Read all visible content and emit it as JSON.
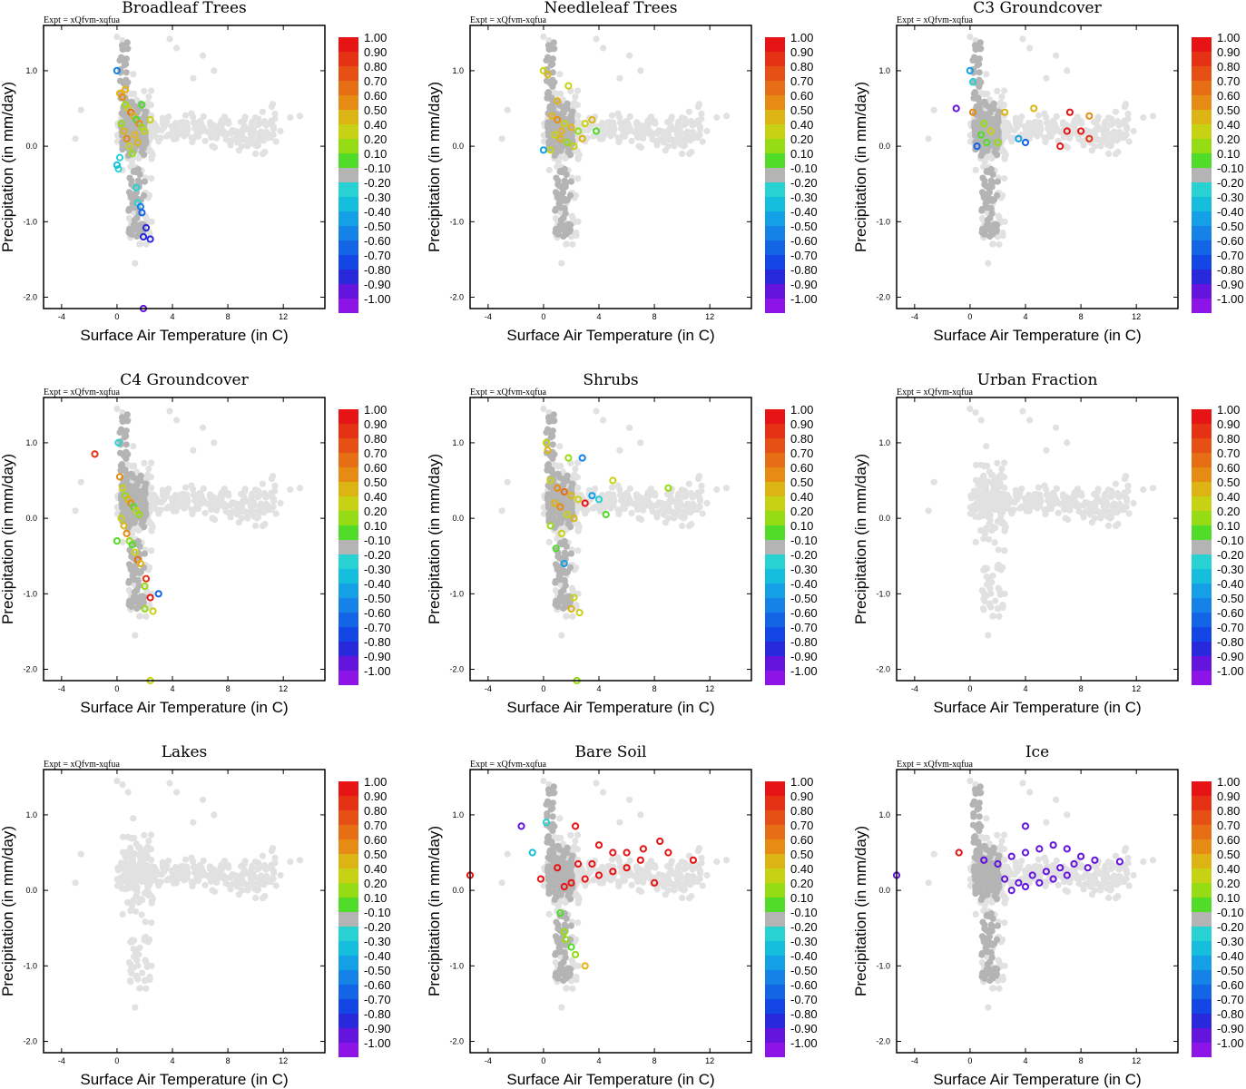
{
  "figure": {
    "expt_label": "Expt = xQfvm-xqfua"
  },
  "axes": {
    "xlabel": "Surface Air Temperature (in C)",
    "ylabel": "Precipitation (in mm/day)",
    "xlim": [
      -5.3,
      15
    ],
    "ylim": [
      -2.15,
      1.6
    ],
    "xticks": [
      -4,
      0,
      4,
      8,
      12
    ],
    "xtick_labels": [
      "-4",
      "0",
      "4",
      "8",
      "12"
    ],
    "yticks": [
      -2,
      -1,
      0,
      1
    ],
    "ytick_labels": [
      "-2.0",
      "-1.0",
      "0.0",
      "1.0"
    ]
  },
  "colorbar": {
    "labels": [
      "1.00",
      "0.90",
      "0.80",
      "0.70",
      "0.60",
      "0.50",
      "0.40",
      "0.20",
      "0.10",
      "-0.10",
      "-0.20",
      "-0.30",
      "-0.40",
      "-0.50",
      "-0.60",
      "-0.70",
      "-0.80",
      "-0.90",
      "-1.00"
    ],
    "colors": [
      "#e61414",
      "#e63214",
      "#e65014",
      "#e66e14",
      "#e68c14",
      "#dcb414",
      "#c8d214",
      "#96dc14",
      "#50dc28",
      "#b4b4b4",
      "#28d2d2",
      "#14bedc",
      "#14a0e6",
      "#1482e6",
      "#1464e6",
      "#1446e6",
      "#2828dc",
      "#6414dc",
      "#8c14e6"
    ]
  },
  "colors": {
    "background_points": "#e1e1e1",
    "neutral_points": "#b4b4b4"
  },
  "chart_data": [
    {
      "type": "scatter",
      "title": "Broadleaf Trees",
      "series": [
        {
          "name": "cluster",
          "points": [
            [
              0.2,
              0.7,
              "#e6b414"
            ],
            [
              0.4,
              0.65,
              "#e68c14"
            ],
            [
              0.6,
              0.55,
              "#96dc14"
            ],
            [
              0.8,
              0.5,
              "#c8d214"
            ],
            [
              1.0,
              0.45,
              "#e66e14"
            ],
            [
              1.2,
              0.4,
              "#dcb414"
            ],
            [
              1.4,
              0.35,
              "#50dc28"
            ],
            [
              1.6,
              0.3,
              "#e68c14"
            ],
            [
              1.8,
              0.25,
              "#96dc14"
            ],
            [
              2.0,
              0.2,
              "#c8d214"
            ],
            [
              0.3,
              0.3,
              "#96dc14"
            ],
            [
              0.5,
              0.2,
              "#dcb414"
            ],
            [
              0.7,
              0.1,
              "#e68c14"
            ],
            [
              0.9,
              0.0,
              "#c8d214"
            ],
            [
              1.1,
              -0.1,
              "#96dc14"
            ],
            [
              1.3,
              0.15,
              "#e6b414"
            ],
            [
              1.5,
              0.05,
              "#dcb414"
            ],
            [
              0.2,
              -0.15,
              "#28d2d2"
            ],
            [
              0.1,
              -0.3,
              "#28d2d2"
            ],
            [
              1.8,
              0.55,
              "#50dc28"
            ],
            [
              2.4,
              0.35,
              "#c8d214"
            ],
            [
              0.6,
              0.75,
              "#e6b414"
            ]
          ]
        },
        {
          "name": "tail",
          "points": [
            [
              0.0,
              -0.25,
              "#14bedc"
            ],
            [
              1.4,
              -0.55,
              "#28d2d2"
            ],
            [
              1.5,
              -0.75,
              "#28d2d2"
            ],
            [
              1.7,
              -0.8,
              "#1482e6"
            ],
            [
              1.8,
              -0.88,
              "#1464e6"
            ],
            [
              2.1,
              -1.08,
              "#2828dc"
            ],
            [
              1.9,
              -1.2,
              "#2828dc"
            ],
            [
              2.4,
              -1.23,
              "#2828dc"
            ],
            [
              1.9,
              -2.15,
              "#6414dc"
            ],
            [
              0.0,
              1.0,
              "#1482e6"
            ]
          ]
        }
      ]
    },
    {
      "type": "scatter",
      "title": "Needleleaf Trees",
      "series": [
        {
          "name": "cluster",
          "points": [
            [
              0.0,
              1.0,
              "#c8d214"
            ],
            [
              0.3,
              0.95,
              "#dcb414"
            ],
            [
              1.8,
              0.8,
              "#c8d214"
            ],
            [
              0.6,
              0.4,
              "#e6b414"
            ],
            [
              1.0,
              0.35,
              "#e68c14"
            ],
            [
              1.5,
              0.3,
              "#c8d214"
            ],
            [
              2.0,
              0.25,
              "#e6b414"
            ],
            [
              2.5,
              0.2,
              "#96dc14"
            ],
            [
              3.0,
              0.3,
              "#c8d214"
            ],
            [
              3.5,
              0.35,
              "#dcb414"
            ],
            [
              0.8,
              0.15,
              "#c8d214"
            ],
            [
              1.2,
              0.1,
              "#dcb414"
            ],
            [
              1.7,
              0.05,
              "#96dc14"
            ],
            [
              2.2,
              0.0,
              "#c8d214"
            ],
            [
              0.5,
              -0.05,
              "#c8d214"
            ],
            [
              1.3,
              0.2,
              "#e6b414"
            ],
            [
              2.8,
              0.1,
              "#dcb414"
            ],
            [
              0.0,
              -0.05,
              "#14a0e6"
            ],
            [
              3.8,
              0.2,
              "#50dc28"
            ],
            [
              1.0,
              0.6,
              "#e6b414"
            ]
          ]
        }
      ]
    },
    {
      "type": "scatter",
      "title": "C3 Groundcover",
      "series": [
        {
          "name": "cluster",
          "points": [
            [
              0.0,
              1.0,
              "#14a0e6"
            ],
            [
              0.2,
              0.85,
              "#28d2d2"
            ],
            [
              -1.0,
              0.5,
              "#6414dc"
            ],
            [
              0.2,
              0.45,
              "#e68c14"
            ],
            [
              2.5,
              0.45,
              "#dcb414"
            ],
            [
              4.6,
              0.5,
              "#dcb414"
            ],
            [
              1.0,
              0.3,
              "#96dc14"
            ],
            [
              1.5,
              0.2,
              "#c8d214"
            ],
            [
              0.8,
              0.15,
              "#50dc28"
            ],
            [
              2.0,
              0.05,
              "#96dc14"
            ],
            [
              1.2,
              0.05,
              "#50dc28"
            ],
            [
              3.5,
              0.1,
              "#14a0e6"
            ],
            [
              4.0,
              0.05,
              "#1464e6"
            ],
            [
              7.2,
              0.45,
              "#e61414"
            ],
            [
              8.6,
              0.4,
              "#e68c14"
            ],
            [
              7.0,
              0.2,
              "#e61414"
            ],
            [
              8.0,
              0.2,
              "#e61414"
            ],
            [
              8.6,
              0.1,
              "#e63214"
            ],
            [
              6.5,
              0.0,
              "#e61414"
            ],
            [
              0.5,
              0.0,
              "#1464e6"
            ]
          ]
        }
      ]
    },
    {
      "type": "scatter",
      "title": "C4 Groundcover",
      "series": [
        {
          "name": "cluster",
          "points": [
            [
              -1.6,
              0.85,
              "#e63214"
            ],
            [
              0.1,
              1.0,
              "#28d2d2"
            ],
            [
              0.2,
              0.55,
              "#e68c14"
            ],
            [
              0.4,
              0.4,
              "#c8d214"
            ],
            [
              0.6,
              0.3,
              "#96dc14"
            ],
            [
              0.8,
              0.25,
              "#dcb414"
            ],
            [
              1.0,
              0.2,
              "#e68c14"
            ],
            [
              1.2,
              0.15,
              "#50dc28"
            ],
            [
              1.4,
              0.1,
              "#c8d214"
            ],
            [
              1.6,
              0.05,
              "#96dc14"
            ],
            [
              0.3,
              0.0,
              "#c8d214"
            ],
            [
              0.5,
              -0.1,
              "#dcb414"
            ],
            [
              0.7,
              -0.2,
              "#e68c14"
            ],
            [
              0.9,
              -0.3,
              "#96dc14"
            ],
            [
              1.1,
              -0.35,
              "#50dc28"
            ],
            [
              1.3,
              -0.45,
              "#c8d214"
            ],
            [
              1.5,
              -0.55,
              "#e66e14"
            ],
            [
              1.7,
              -0.6,
              "#dcb414"
            ],
            [
              0.0,
              -0.3,
              "#50dc28"
            ],
            [
              2.1,
              -0.8,
              "#e63214"
            ],
            [
              2.0,
              -0.9,
              "#96dc14"
            ],
            [
              3.0,
              -1.0,
              "#1464e6"
            ],
            [
              2.4,
              -1.05,
              "#e61414"
            ],
            [
              2.0,
              -1.2,
              "#96dc14"
            ],
            [
              2.6,
              -1.23,
              "#c8d214"
            ],
            [
              2.4,
              -2.15,
              "#c8d214"
            ]
          ]
        }
      ]
    },
    {
      "type": "scatter",
      "title": "Shrubs",
      "series": [
        {
          "name": "cluster",
          "points": [
            [
              0.2,
              1.0,
              "#c8d214"
            ],
            [
              0.3,
              0.9,
              "#dcb414"
            ],
            [
              1.8,
              0.8,
              "#96dc14"
            ],
            [
              2.8,
              0.8,
              "#1482e6"
            ],
            [
              0.5,
              0.5,
              "#c8d214"
            ],
            [
              1.0,
              0.4,
              "#e68c14"
            ],
            [
              1.5,
              0.35,
              "#e66e14"
            ],
            [
              2.0,
              0.3,
              "#dcb414"
            ],
            [
              2.5,
              0.25,
              "#c8d214"
            ],
            [
              3.0,
              0.2,
              "#e61414"
            ],
            [
              3.5,
              0.3,
              "#14a0e6"
            ],
            [
              4.0,
              0.25,
              "#28d2d2"
            ],
            [
              5.0,
              0.5,
              "#c8d214"
            ],
            [
              9.0,
              0.4,
              "#96dc14"
            ],
            [
              0.8,
              0.2,
              "#dcb414"
            ],
            [
              1.2,
              0.15,
              "#e68c14"
            ],
            [
              1.7,
              0.05,
              "#c8d214"
            ],
            [
              2.2,
              0.0,
              "#dcb414"
            ],
            [
              0.5,
              -0.1,
              "#96dc14"
            ],
            [
              1.3,
              -0.2,
              "#c8d214"
            ],
            [
              0.9,
              -0.4,
              "#50dc28"
            ],
            [
              1.5,
              -0.6,
              "#14a0e6"
            ],
            [
              2.2,
              -1.05,
              "#c8d214"
            ],
            [
              2.0,
              -1.2,
              "#dcb414"
            ],
            [
              2.6,
              -1.25,
              "#c8d214"
            ],
            [
              2.4,
              -2.15,
              "#96dc14"
            ],
            [
              4.5,
              0.05,
              "#50dc28"
            ]
          ]
        }
      ]
    },
    {
      "type": "scatter",
      "title": "Urban Fraction",
      "series": []
    },
    {
      "type": "scatter",
      "title": "Lakes",
      "series": []
    },
    {
      "type": "scatter",
      "title": "Bare Soil",
      "series": [
        {
          "name": "cluster",
          "points": [
            [
              -5.3,
              0.2,
              "#e61414"
            ],
            [
              -1.6,
              0.85,
              "#6414dc"
            ],
            [
              0.2,
              0.9,
              "#28d2d2"
            ],
            [
              -0.8,
              0.5,
              "#14bedc"
            ],
            [
              -0.2,
              0.15,
              "#e61414"
            ],
            [
              2.3,
              0.85,
              "#e61414"
            ],
            [
              4.0,
              0.6,
              "#e61414"
            ],
            [
              5.0,
              0.5,
              "#e61414"
            ],
            [
              6.0,
              0.5,
              "#e61414"
            ],
            [
              7.2,
              0.55,
              "#e61414"
            ],
            [
              8.4,
              0.65,
              "#e61414"
            ],
            [
              9.0,
              0.5,
              "#e61414"
            ],
            [
              10.8,
              0.4,
              "#e61414"
            ],
            [
              7.0,
              0.4,
              "#e61414"
            ],
            [
              6.0,
              0.3,
              "#e61414"
            ],
            [
              5.0,
              0.25,
              "#e61414"
            ],
            [
              4.0,
              0.2,
              "#e61414"
            ],
            [
              3.0,
              0.15,
              "#e61414"
            ],
            [
              2.0,
              0.1,
              "#e61414"
            ],
            [
              1.5,
              0.05,
              "#e61414"
            ],
            [
              3.5,
              0.35,
              "#e61414"
            ],
            [
              2.5,
              0.35,
              "#e61414"
            ],
            [
              1.0,
              0.3,
              "#e61414"
            ],
            [
              8.0,
              0.1,
              "#e61414"
            ],
            [
              1.2,
              -0.3,
              "#50dc28"
            ],
            [
              1.5,
              -0.55,
              "#96dc14"
            ],
            [
              1.6,
              -0.65,
              "#96dc14"
            ],
            [
              2.0,
              -0.75,
              "#50dc28"
            ],
            [
              2.3,
              -0.85,
              "#96dc14"
            ],
            [
              3.0,
              -1.0,
              "#e6b414"
            ]
          ]
        }
      ]
    },
    {
      "type": "scatter",
      "title": "Ice",
      "series": [
        {
          "name": "cluster",
          "points": [
            [
              -5.3,
              0.2,
              "#6414dc"
            ],
            [
              -0.8,
              0.5,
              "#e61414"
            ],
            [
              4.0,
              0.85,
              "#6414dc"
            ],
            [
              1.0,
              0.4,
              "#6414dc"
            ],
            [
              2.0,
              0.35,
              "#6414dc"
            ],
            [
              3.0,
              0.45,
              "#6414dc"
            ],
            [
              4.0,
              0.5,
              "#6414dc"
            ],
            [
              5.0,
              0.55,
              "#6414dc"
            ],
            [
              6.0,
              0.6,
              "#6414dc"
            ],
            [
              7.0,
              0.55,
              "#6414dc"
            ],
            [
              8.0,
              0.45,
              "#6414dc"
            ],
            [
              9.0,
              0.4,
              "#6414dc"
            ],
            [
              10.8,
              0.38,
              "#6414dc"
            ],
            [
              2.5,
              0.15,
              "#6414dc"
            ],
            [
              3.5,
              0.1,
              "#6414dc"
            ],
            [
              4.5,
              0.2,
              "#6414dc"
            ],
            [
              5.5,
              0.25,
              "#6414dc"
            ],
            [
              6.5,
              0.3,
              "#6414dc"
            ],
            [
              7.5,
              0.35,
              "#6414dc"
            ],
            [
              8.5,
              0.3,
              "#6414dc"
            ],
            [
              3.0,
              0.0,
              "#6414dc"
            ],
            [
              4.0,
              0.05,
              "#6414dc"
            ],
            [
              5.0,
              0.1,
              "#6414dc"
            ],
            [
              6.0,
              0.15,
              "#6414dc"
            ],
            [
              7.0,
              0.2,
              "#6414dc"
            ]
          ]
        }
      ]
    }
  ]
}
